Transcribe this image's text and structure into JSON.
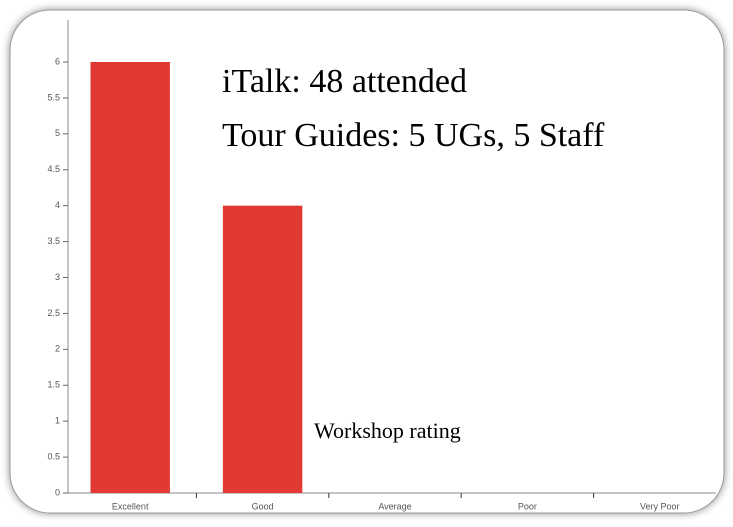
{
  "chart_data": {
    "type": "bar",
    "annotations": [
      "iTalk: 48 attended",
      "Tour Guides: 5 UGs, 5 Staff",
      "Workshop rating"
    ],
    "categories": [
      "Excellent",
      "Good",
      "Average",
      "Poor",
      "Very Poor"
    ],
    "values": [
      6,
      4,
      0,
      0,
      0
    ],
    "color": "#e03a33",
    "ylim": [
      0,
      6
    ],
    "yticks": [
      0,
      0.5,
      1,
      1.5,
      2,
      2.5,
      3,
      3.5,
      4,
      4.5,
      5,
      5.5,
      6
    ],
    "grid": false
  }
}
